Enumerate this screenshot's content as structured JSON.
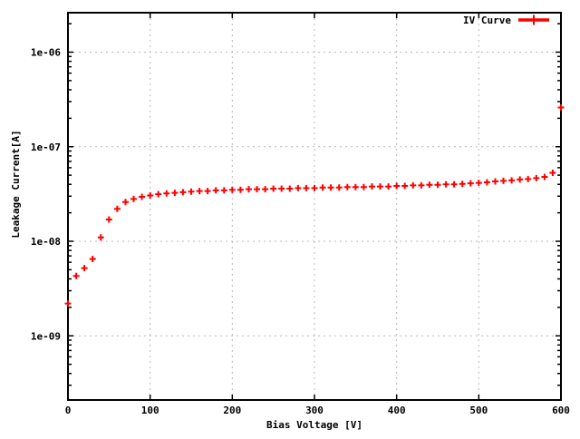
{
  "colors": {
    "background": "#ffffff",
    "axis": "#000000",
    "grid": "#b8b8b8",
    "text": "#000000",
    "series_red": "#ff0000"
  },
  "chart_data": {
    "type": "scatter",
    "title": "",
    "xlabel": "Bias Voltage [V]",
    "ylabel": "Leakage Current[A]",
    "x_range": [
      0,
      600
    ],
    "y_scale": "log",
    "y_range": [
      2.1e-10,
      2.6e-06
    ],
    "grid": true,
    "legend_position": "top-right-inside",
    "x_tick_values": [
      0,
      100,
      200,
      300,
      400,
      500,
      600
    ],
    "x_tick_labels": [
      "0",
      "100",
      "200",
      "300",
      "400",
      "500",
      "600"
    ],
    "y_tick_values": [
      1e-09,
      1e-08,
      1e-07,
      1e-06
    ],
    "y_tick_labels": [
      "1e-09",
      "1e-08",
      "1e-07",
      "1e-06"
    ],
    "legend_entries": [
      {
        "label": "IV Curve",
        "color": "#ff0000",
        "marker": "plus-with-line"
      }
    ],
    "series": [
      {
        "name": "IV Curve",
        "marker": "plus",
        "color": "#ff0000",
        "x": [
          0,
          10,
          20,
          30,
          40,
          50,
          60,
          70,
          80,
          90,
          100,
          110,
          120,
          130,
          140,
          150,
          160,
          170,
          180,
          190,
          200,
          210,
          220,
          230,
          240,
          250,
          260,
          270,
          280,
          290,
          300,
          310,
          320,
          330,
          340,
          350,
          360,
          370,
          380,
          390,
          400,
          410,
          420,
          430,
          440,
          450,
          460,
          470,
          480,
          490,
          500,
          510,
          520,
          530,
          540,
          550,
          560,
          570,
          580,
          590,
          600
        ],
        "y": [
          2.2e-09,
          4.3e-09,
          5.2e-09,
          6.5e-09,
          1.1e-08,
          1.7e-08,
          2.2e-08,
          2.6e-08,
          2.8e-08,
          2.95e-08,
          3.05e-08,
          3.15e-08,
          3.2e-08,
          3.25e-08,
          3.3e-08,
          3.35e-08,
          3.4e-08,
          3.4e-08,
          3.45e-08,
          3.45e-08,
          3.5e-08,
          3.5e-08,
          3.55e-08,
          3.55e-08,
          3.55e-08,
          3.6e-08,
          3.6e-08,
          3.6e-08,
          3.65e-08,
          3.65e-08,
          3.65e-08,
          3.7e-08,
          3.7e-08,
          3.7e-08,
          3.75e-08,
          3.75e-08,
          3.75e-08,
          3.8e-08,
          3.8e-08,
          3.8e-08,
          3.85e-08,
          3.85e-08,
          3.9e-08,
          3.9e-08,
          3.95e-08,
          3.95e-08,
          4e-08,
          4e-08,
          4.05e-08,
          4.1e-08,
          4.15e-08,
          4.2e-08,
          4.3e-08,
          4.35e-08,
          4.4e-08,
          4.5e-08,
          4.55e-08,
          4.65e-08,
          4.8e-08,
          5.3e-08,
          2.6e-07
        ]
      }
    ]
  }
}
